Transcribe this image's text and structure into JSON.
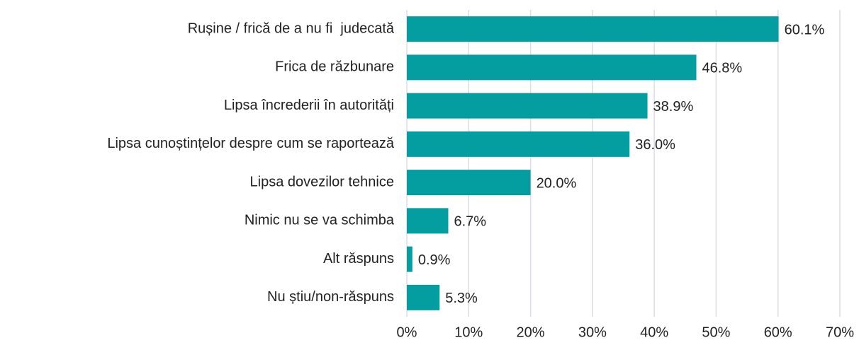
{
  "chart_data": {
    "type": "barh",
    "categories": [
      "Rușine / frică de a nu fi  judecată",
      "Frica de răzbunare",
      "Lipsa încrederii în autorități",
      "Lipsa cunoștințelor despre cum se raportează",
      "Lipsa dovezilor tehnice",
      "Nimic nu se va schimba",
      "Alt răspuns",
      "Nu știu/non-răspuns"
    ],
    "values": [
      60.1,
      46.8,
      38.9,
      36.0,
      20.0,
      6.7,
      0.9,
      5.3
    ],
    "value_labels": [
      "60.1%",
      "46.8%",
      "38.9%",
      "36.0%",
      "20.0%",
      "6.7%",
      "0.9%",
      "5.3%"
    ],
    "color": "#049da0",
    "xlim": [
      0,
      70
    ],
    "xticks": [
      {
        "value": 0,
        "label": "0%"
      },
      {
        "value": 10,
        "label": "10%"
      },
      {
        "value": 20,
        "label": "20%"
      },
      {
        "value": 30,
        "label": "30%"
      },
      {
        "value": 40,
        "label": "40%"
      },
      {
        "value": 50,
        "label": "50%"
      },
      {
        "value": 60,
        "label": "60%"
      },
      {
        "value": 70,
        "label": "70%"
      }
    ],
    "grid": true
  }
}
